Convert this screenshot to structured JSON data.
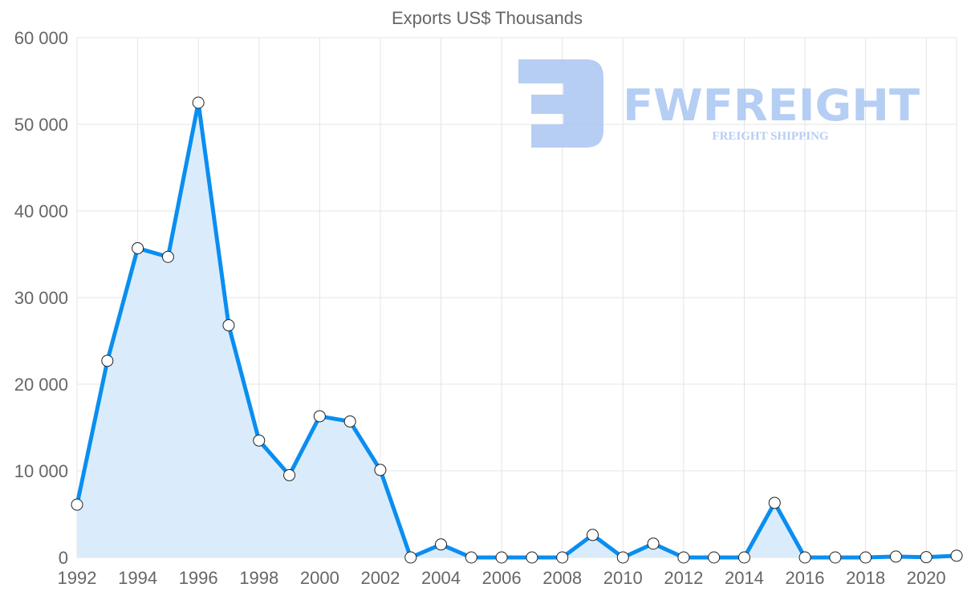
{
  "chart_data": {
    "type": "area",
    "title": "Exports US$ Thousands",
    "xlabel": "",
    "ylabel": "",
    "x": [
      1992,
      1993,
      1994,
      1995,
      1996,
      1997,
      1998,
      1999,
      2000,
      2001,
      2002,
      2003,
      2004,
      2005,
      2006,
      2007,
      2008,
      2009,
      2010,
      2011,
      2012,
      2013,
      2014,
      2015,
      2016,
      2017,
      2018,
      2019,
      2020,
      2021
    ],
    "series": [
      {
        "name": "Exports US$ Thousands",
        "values": [
          6100,
          22700,
          35700,
          34700,
          52500,
          26800,
          13500,
          9500,
          16300,
          15700,
          10100,
          0,
          1500,
          0,
          0,
          0,
          0,
          2600,
          0,
          1600,
          0,
          0,
          0,
          6300,
          0,
          0,
          0,
          100,
          30,
          200
        ]
      }
    ],
    "xlim": [
      1992,
      2021
    ],
    "ylim": [
      0,
      60000
    ],
    "x_ticks": [
      "1992",
      "1994",
      "1996",
      "1998",
      "2000",
      "2002",
      "2004",
      "2006",
      "2008",
      "2010",
      "2012",
      "2014",
      "2016",
      "2018",
      "2020"
    ],
    "y_ticks": [
      "0",
      "10 000",
      "20 000",
      "30 000",
      "40 000",
      "50 000",
      "60 000"
    ],
    "grid": true,
    "legend": "none",
    "colors": {
      "line": "#0a8ef0",
      "fill": "#d6eafb",
      "grid": "#e4e4e4",
      "text": "#666666"
    }
  },
  "watermark": {
    "brand": "FWFREIGHT",
    "tagline": "FREIGHT SHIPPING",
    "color": "#a9c6f2"
  }
}
